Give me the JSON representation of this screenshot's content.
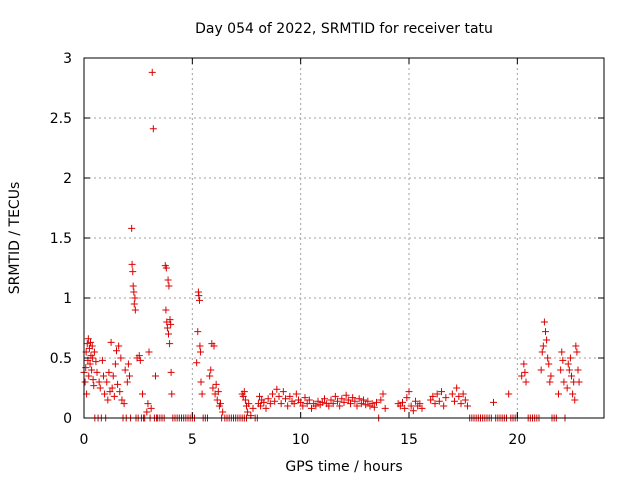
{
  "chart_data": {
    "type": "scatter",
    "title": "Day 054 of 2022, SRMTID for receiver tatu",
    "xlabel": "GPS time / hours",
    "ylabel": "SRMTID / TECUs",
    "xlim": [
      0,
      24
    ],
    "ylim": [
      0,
      3
    ],
    "xticks": [
      0,
      5,
      10,
      15,
      20
    ],
    "xtick_labels": [
      "0",
      "5",
      "10",
      "15",
      "20"
    ],
    "yticks": [
      0,
      0.5,
      1,
      1.5,
      2,
      2.5,
      3
    ],
    "ytick_labels": [
      "0",
      "0.5",
      "1",
      "1.5",
      "2",
      "2.5",
      "3"
    ],
    "grid": true,
    "marker": "+",
    "color": "#dd0000",
    "series": [
      {
        "name": "SRMTID",
        "points": [
          [
            0.0,
            0.38
          ],
          [
            0.05,
            0.3
          ],
          [
            0.08,
            0.42
          ],
          [
            0.1,
            0.55
          ],
          [
            0.12,
            0.2
          ],
          [
            0.15,
            0.62
          ],
          [
            0.18,
            0.48
          ],
          [
            0.2,
            0.66
          ],
          [
            0.22,
            0.35
          ],
          [
            0.25,
            0.58
          ],
          [
            0.28,
            0.45
          ],
          [
            0.3,
            0.63
          ],
          [
            0.32,
            0.52
          ],
          [
            0.35,
            0.4
          ],
          [
            0.38,
            0.6
          ],
          [
            0.4,
            0.5
          ],
          [
            0.42,
            0.32
          ],
          [
            0.45,
            0.27
          ],
          [
            0.48,
            0.55
          ],
          [
            0.5,
            0.0
          ],
          [
            0.55,
            0.47
          ],
          [
            0.6,
            0.38
          ],
          [
            0.65,
            0.0
          ],
          [
            0.7,
            0.3
          ],
          [
            0.75,
            0.25
          ],
          [
            0.8,
            0.0
          ],
          [
            0.85,
            0.48
          ],
          [
            0.9,
            0.35
          ],
          [
            0.95,
            0.2
          ],
          [
            1.0,
            0.0
          ],
          [
            1.05,
            0.3
          ],
          [
            1.1,
            0.15
          ],
          [
            1.15,
            0.38
          ],
          [
            1.2,
            0.22
          ],
          [
            1.25,
            0.63
          ],
          [
            1.3,
            0.25
          ],
          [
            1.35,
            0.35
          ],
          [
            1.4,
            0.18
          ],
          [
            1.45,
            0.45
          ],
          [
            1.5,
            0.56
          ],
          [
            1.55,
            0.28
          ],
          [
            1.6,
            0.6
          ],
          [
            1.65,
            0.22
          ],
          [
            1.7,
            0.5
          ],
          [
            1.75,
            0.15
          ],
          [
            1.8,
            0.0
          ],
          [
            1.85,
            0.12
          ],
          [
            1.9,
            0.4
          ],
          [
            1.95,
            0.0
          ],
          [
            2.0,
            0.3
          ],
          [
            2.05,
            0.45
          ],
          [
            2.1,
            0.35
          ],
          [
            2.15,
            0.0
          ],
          [
            2.2,
            1.58
          ],
          [
            2.22,
            1.28
          ],
          [
            2.25,
            1.22
          ],
          [
            2.27,
            1.1
          ],
          [
            2.3,
            1.05
          ],
          [
            2.32,
            0.95
          ],
          [
            2.35,
            1.0
          ],
          [
            2.37,
            0.9
          ],
          [
            2.4,
            0.0
          ],
          [
            2.45,
            0.5
          ],
          [
            2.5,
            0.0
          ],
          [
            2.55,
            0.52
          ],
          [
            2.6,
            0.48
          ],
          [
            2.65,
            0.0
          ],
          [
            2.7,
            0.2
          ],
          [
            2.75,
            0.0
          ],
          [
            2.8,
            0.0
          ],
          [
            2.9,
            0.05
          ],
          [
            2.95,
            0.12
          ],
          [
            3.0,
            0.55
          ],
          [
            3.05,
            0.0
          ],
          [
            3.1,
            0.08
          ],
          [
            3.15,
            2.88
          ],
          [
            3.2,
            2.41
          ],
          [
            3.25,
            0.0
          ],
          [
            3.3,
            0.35
          ],
          [
            3.35,
            0.0
          ],
          [
            3.4,
            0.0
          ],
          [
            3.5,
            0.0
          ],
          [
            3.6,
            0.0
          ],
          [
            3.7,
            0.0
          ],
          [
            3.75,
            1.27
          ],
          [
            3.78,
            0.9
          ],
          [
            3.8,
            1.25
          ],
          [
            3.82,
            0.8
          ],
          [
            3.85,
            0.75
          ],
          [
            3.88,
            1.15
          ],
          [
            3.9,
            0.7
          ],
          [
            3.92,
            1.1
          ],
          [
            3.95,
            0.62
          ],
          [
            3.97,
            0.82
          ],
          [
            4.0,
            0.78
          ],
          [
            4.02,
            0.38
          ],
          [
            4.05,
            0.2
          ],
          [
            4.1,
            0.0
          ],
          [
            4.2,
            0.0
          ],
          [
            4.3,
            0.0
          ],
          [
            4.4,
            0.0
          ],
          [
            4.5,
            0.0
          ],
          [
            4.6,
            0.0
          ],
          [
            4.7,
            0.0
          ],
          [
            4.8,
            0.0
          ],
          [
            4.9,
            0.0
          ],
          [
            5.0,
            0.0
          ],
          [
            5.1,
            0.0
          ],
          [
            5.2,
            0.46
          ],
          [
            5.25,
            0.72
          ],
          [
            5.28,
            1.05
          ],
          [
            5.3,
            1.02
          ],
          [
            5.33,
            0.98
          ],
          [
            5.35,
            0.6
          ],
          [
            5.38,
            0.55
          ],
          [
            5.4,
            0.3
          ],
          [
            5.45,
            0.2
          ],
          [
            5.5,
            0.0
          ],
          [
            5.6,
            0.0
          ],
          [
            5.7,
            0.0
          ],
          [
            5.8,
            0.35
          ],
          [
            5.85,
            0.4
          ],
          [
            5.9,
            0.62
          ],
          [
            5.95,
            0.25
          ],
          [
            6.0,
            0.6
          ],
          [
            6.05,
            0.2
          ],
          [
            6.1,
            0.28
          ],
          [
            6.15,
            0.15
          ],
          [
            6.2,
            0.22
          ],
          [
            6.25,
            0.1
          ],
          [
            6.3,
            0.12
          ],
          [
            6.35,
            0.0
          ],
          [
            6.4,
            0.05
          ],
          [
            6.5,
            0.0
          ],
          [
            6.6,
            0.0
          ],
          [
            6.7,
            0.0
          ],
          [
            6.8,
            0.0
          ],
          [
            6.9,
            0.0
          ],
          [
            7.0,
            0.0
          ],
          [
            7.1,
            0.0
          ],
          [
            7.2,
            0.0
          ],
          [
            7.3,
            0.0
          ],
          [
            7.4,
            0.0
          ],
          [
            7.5,
            0.0
          ],
          [
            7.3,
            0.2
          ],
          [
            7.35,
            0.18
          ],
          [
            7.4,
            0.22
          ],
          [
            7.45,
            0.15
          ],
          [
            7.5,
            0.1
          ],
          [
            7.55,
            0.05
          ],
          [
            7.6,
            0.12
          ],
          [
            7.7,
            0.02
          ],
          [
            7.8,
            0.08
          ],
          [
            7.9,
            0.0
          ],
          [
            8.0,
            0.0
          ],
          [
            8.05,
            0.12
          ],
          [
            8.1,
            0.18
          ],
          [
            8.15,
            0.1
          ],
          [
            8.2,
            0.15
          ],
          [
            8.3,
            0.13
          ],
          [
            8.4,
            0.08
          ],
          [
            8.5,
            0.16
          ],
          [
            8.6,
            0.12
          ],
          [
            8.7,
            0.2
          ],
          [
            8.8,
            0.14
          ],
          [
            8.9,
            0.24
          ],
          [
            9.0,
            0.18
          ],
          [
            9.1,
            0.12
          ],
          [
            9.2,
            0.22
          ],
          [
            9.3,
            0.16
          ],
          [
            9.4,
            0.1
          ],
          [
            9.5,
            0.18
          ],
          [
            9.6,
            0.14
          ],
          [
            9.7,
            0.12
          ],
          [
            9.8,
            0.2
          ],
          [
            9.9,
            0.15
          ],
          [
            10.0,
            0.13
          ],
          [
            10.1,
            0.1
          ],
          [
            10.2,
            0.17
          ],
          [
            10.3,
            0.12
          ],
          [
            10.4,
            0.15
          ],
          [
            10.5,
            0.08
          ],
          [
            10.6,
            0.12
          ],
          [
            10.7,
            0.1
          ],
          [
            10.8,
            0.14
          ],
          [
            10.9,
            0.11
          ],
          [
            11.0,
            0.13
          ],
          [
            11.1,
            0.16
          ],
          [
            11.2,
            0.12
          ],
          [
            11.3,
            0.1
          ],
          [
            11.4,
            0.15
          ],
          [
            11.5,
            0.12
          ],
          [
            11.6,
            0.18
          ],
          [
            11.7,
            0.14
          ],
          [
            11.8,
            0.1
          ],
          [
            11.9,
            0.16
          ],
          [
            12.0,
            0.13
          ],
          [
            12.1,
            0.19
          ],
          [
            12.2,
            0.15
          ],
          [
            12.3,
            0.12
          ],
          [
            12.4,
            0.17
          ],
          [
            12.5,
            0.14
          ],
          [
            12.6,
            0.1
          ],
          [
            12.7,
            0.16
          ],
          [
            12.8,
            0.12
          ],
          [
            12.9,
            0.15
          ],
          [
            13.0,
            0.11
          ],
          [
            13.1,
            0.14
          ],
          [
            13.2,
            0.1
          ],
          [
            13.3,
            0.12
          ],
          [
            13.4,
            0.09
          ],
          [
            13.5,
            0.13
          ],
          [
            13.6,
            0.0
          ],
          [
            13.7,
            0.15
          ],
          [
            13.8,
            0.2
          ],
          [
            13.9,
            0.08
          ],
          [
            14.5,
            0.12
          ],
          [
            14.6,
            0.1
          ],
          [
            14.7,
            0.13
          ],
          [
            14.8,
            0.08
          ],
          [
            14.9,
            0.17
          ],
          [
            15.0,
            0.22
          ],
          [
            15.1,
            0.1
          ],
          [
            15.2,
            0.06
          ],
          [
            15.3,
            0.14
          ],
          [
            15.4,
            0.1
          ],
          [
            15.5,
            0.12
          ],
          [
            15.6,
            0.08
          ],
          [
            16.0,
            0.15
          ],
          [
            16.1,
            0.18
          ],
          [
            16.2,
            0.12
          ],
          [
            16.3,
            0.2
          ],
          [
            16.4,
            0.14
          ],
          [
            16.5,
            0.22
          ],
          [
            16.6,
            0.1
          ],
          [
            16.7,
            0.17
          ],
          [
            17.0,
            0.2
          ],
          [
            17.1,
            0.14
          ],
          [
            17.2,
            0.25
          ],
          [
            17.3,
            0.18
          ],
          [
            17.4,
            0.12
          ],
          [
            17.5,
            0.2
          ],
          [
            17.6,
            0.15
          ],
          [
            17.7,
            0.1
          ],
          [
            17.8,
            0.0
          ],
          [
            17.9,
            0.0
          ],
          [
            18.0,
            0.0
          ],
          [
            18.1,
            0.0
          ],
          [
            18.2,
            0.0
          ],
          [
            18.3,
            0.0
          ],
          [
            18.4,
            0.0
          ],
          [
            18.5,
            0.0
          ],
          [
            18.6,
            0.0
          ],
          [
            18.7,
            0.0
          ],
          [
            18.8,
            0.0
          ],
          [
            18.9,
            0.13
          ],
          [
            19.0,
            0.0
          ],
          [
            19.1,
            0.0
          ],
          [
            19.2,
            0.0
          ],
          [
            19.3,
            0.0
          ],
          [
            19.4,
            0.0
          ],
          [
            19.5,
            0.0
          ],
          [
            19.6,
            0.2
          ],
          [
            19.7,
            0.0
          ],
          [
            19.8,
            0.0
          ],
          [
            19.9,
            0.0
          ],
          [
            20.0,
            0.0
          ],
          [
            20.2,
            0.35
          ],
          [
            20.3,
            0.45
          ],
          [
            20.35,
            0.38
          ],
          [
            20.4,
            0.3
          ],
          [
            20.5,
            0.0
          ],
          [
            20.6,
            0.0
          ],
          [
            20.7,
            0.0
          ],
          [
            20.8,
            0.0
          ],
          [
            20.9,
            0.0
          ],
          [
            21.0,
            0.0
          ],
          [
            21.1,
            0.4
          ],
          [
            21.15,
            0.55
          ],
          [
            21.2,
            0.6
          ],
          [
            21.25,
            0.8
          ],
          [
            21.3,
            0.72
          ],
          [
            21.35,
            0.65
          ],
          [
            21.4,
            0.5
          ],
          [
            21.45,
            0.45
          ],
          [
            21.5,
            0.3
          ],
          [
            21.55,
            0.35
          ],
          [
            21.6,
            0.0
          ],
          [
            21.7,
            0.0
          ],
          [
            21.8,
            0.0
          ],
          [
            21.9,
            0.2
          ],
          [
            22.0,
            0.4
          ],
          [
            22.05,
            0.55
          ],
          [
            22.1,
            0.48
          ],
          [
            22.15,
            0.3
          ],
          [
            22.2,
            0.0
          ],
          [
            22.3,
            0.25
          ],
          [
            22.35,
            0.45
          ],
          [
            22.4,
            0.4
          ],
          [
            22.45,
            0.5
          ],
          [
            22.5,
            0.35
          ],
          [
            22.55,
            0.2
          ],
          [
            22.6,
            0.3
          ],
          [
            22.65,
            0.15
          ],
          [
            22.7,
            0.6
          ],
          [
            22.75,
            0.55
          ],
          [
            22.8,
            0.4
          ],
          [
            22.85,
            0.3
          ]
        ]
      }
    ]
  }
}
